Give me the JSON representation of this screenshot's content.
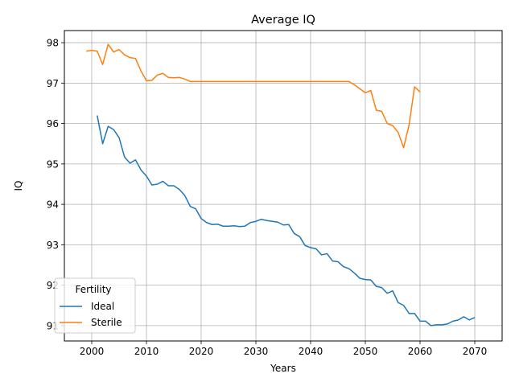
{
  "chart_data": {
    "type": "line",
    "title": "Average IQ",
    "xlabel": "Years",
    "ylabel": "IQ",
    "xlim": [
      1995,
      2075
    ],
    "ylim": [
      90.62,
      98.3
    ],
    "xticks": [
      2000,
      2010,
      2020,
      2030,
      2040,
      2050,
      2060,
      2070
    ],
    "yticks": [
      91,
      92,
      93,
      94,
      95,
      96,
      97,
      98
    ],
    "grid": true,
    "legend": {
      "title": "Fertility",
      "placement": "lower-left"
    },
    "series": [
      {
        "name": "Ideal",
        "color": "#1f77b4",
        "x": [
          2001,
          2002,
          2003,
          2004,
          2005,
          2006,
          2007,
          2008,
          2009,
          2010,
          2011,
          2012,
          2013,
          2014,
          2015,
          2016,
          2017,
          2018,
          2019,
          2020,
          2021,
          2022,
          2023,
          2024,
          2025,
          2026,
          2027,
          2028,
          2029,
          2030,
          2031,
          2032,
          2033,
          2034,
          2035,
          2036,
          2037,
          2038,
          2039,
          2040,
          2041,
          2042,
          2043,
          2044,
          2045,
          2046,
          2047,
          2048,
          2049,
          2050,
          2051,
          2052,
          2053,
          2054,
          2055,
          2056,
          2057,
          2058,
          2059,
          2060,
          2061,
          2062,
          2063,
          2064,
          2065,
          2066,
          2067,
          2068,
          2069,
          2070
        ],
        "y": [
          96.2,
          95.5,
          95.93,
          95.85,
          95.65,
          95.17,
          95.02,
          95.1,
          94.85,
          94.7,
          94.48,
          94.5,
          94.57,
          94.46,
          94.46,
          94.37,
          94.22,
          93.95,
          93.89,
          93.65,
          93.55,
          93.5,
          93.51,
          93.46,
          93.46,
          93.47,
          93.45,
          93.46,
          93.55,
          93.58,
          93.63,
          93.6,
          93.58,
          93.56,
          93.49,
          93.5,
          93.28,
          93.2,
          92.98,
          92.93,
          92.9,
          92.75,
          92.78,
          92.6,
          92.58,
          92.46,
          92.41,
          92.3,
          92.17,
          92.14,
          92.13,
          91.97,
          91.94,
          91.8,
          91.86,
          91.57,
          91.5,
          91.3,
          91.3,
          91.11,
          91.11,
          91.0,
          91.02,
          91.02,
          91.04,
          91.11,
          91.14,
          91.22,
          91.14,
          91.2
        ]
      },
      {
        "name": "Sterile",
        "color": "#ff7f0e",
        "x": [
          1999,
          2000,
          2001,
          2002,
          2003,
          2004,
          2005,
          2006,
          2007,
          2008,
          2009,
          2010,
          2011,
          2012,
          2013,
          2014,
          2015,
          2016,
          2017,
          2018,
          2019,
          2020,
          2021,
          2022,
          2023,
          2024,
          2025,
          2026,
          2027,
          2028,
          2029,
          2030,
          2031,
          2032,
          2033,
          2034,
          2035,
          2036,
          2037,
          2038,
          2039,
          2040,
          2041,
          2042,
          2043,
          2044,
          2045,
          2046,
          2047,
          2048,
          2049,
          2050,
          2051,
          2052,
          2053,
          2054,
          2055,
          2056,
          2057,
          2058,
          2059,
          2060
        ],
        "y": [
          97.79,
          97.81,
          97.79,
          97.46,
          97.96,
          97.77,
          97.83,
          97.7,
          97.63,
          97.61,
          97.3,
          97.06,
          97.07,
          97.2,
          97.24,
          97.14,
          97.13,
          97.14,
          97.1,
          97.04,
          97.04,
          97.04,
          97.04,
          97.04,
          97.04,
          97.04,
          97.04,
          97.04,
          97.04,
          97.04,
          97.04,
          97.04,
          97.04,
          97.04,
          97.04,
          97.04,
          97.04,
          97.04,
          97.04,
          97.04,
          97.04,
          97.04,
          97.04,
          97.04,
          97.04,
          97.04,
          97.04,
          97.04,
          97.04,
          96.96,
          96.86,
          96.76,
          96.82,
          96.33,
          96.3,
          96.0,
          95.95,
          95.78,
          95.4,
          95.97,
          96.91,
          96.78
        ]
      }
    ]
  }
}
